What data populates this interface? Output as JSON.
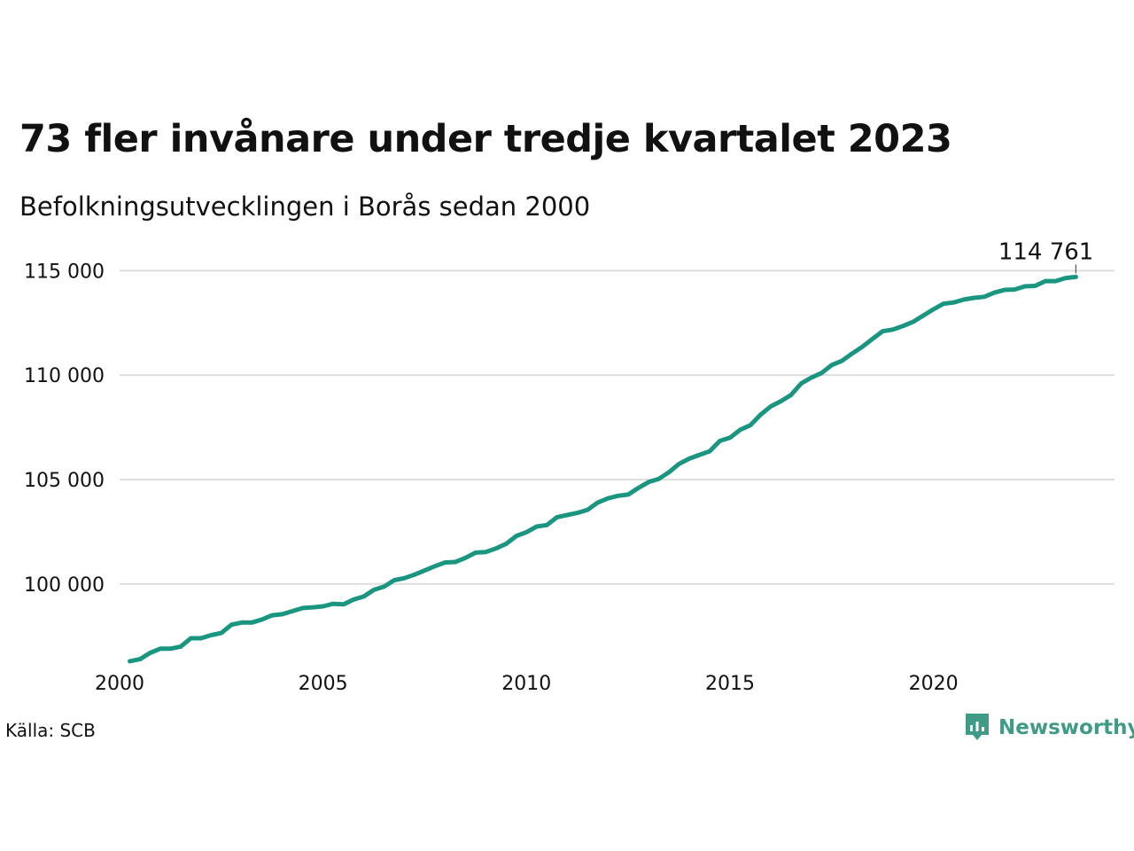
{
  "title": "73 fler invånare under tredje kvartalet 2023",
  "subtitle": "Befolkningsutvecklingen i Borås sedan 2000",
  "source": "Källa: SCB",
  "brand": {
    "name": "Newsworthy",
    "icon": "newsworthy-logo-icon",
    "color": "#3f9a86"
  },
  "chart_data": {
    "type": "line",
    "title": "73 fler invånare under tredje kvartalet 2023",
    "subtitle": "Befolkningsutvecklingen i Borås sedan 2000",
    "xlabel": "",
    "ylabel": "",
    "x_ticks": [
      "2000",
      "2005",
      "2010",
      "2015",
      "2020"
    ],
    "y_ticks": [
      "100 000",
      "105 000",
      "110 000",
      "115 000"
    ],
    "xlim": [
      2000.0,
      2024.45
    ],
    "ylim": [
      96000,
      116500
    ],
    "grid": true,
    "legend": "none",
    "line_color": "#1a9580",
    "end_label": "114 761",
    "series": [
      {
        "x": [
          2000.25,
          2000.5,
          2000.75,
          2001.0,
          2001.25,
          2001.5,
          2001.75,
          2002.0,
          2002.25,
          2002.5,
          2002.75,
          2003.0,
          2003.25,
          2003.5,
          2003.75,
          2004.0,
          2004.25,
          2004.5,
          2004.75,
          2005.0,
          2005.25,
          2005.5,
          2005.75,
          2006.0,
          2006.25,
          2006.5,
          2006.75,
          2007.0,
          2007.25,
          2007.5,
          2007.75,
          2008.0,
          2008.25,
          2008.5,
          2008.75,
          2009.0,
          2009.25,
          2009.5,
          2009.75,
          2010.0,
          2010.25,
          2010.5,
          2010.75,
          2011.0,
          2011.25,
          2011.5,
          2011.75,
          2012.0,
          2012.25,
          2012.5,
          2012.75,
          2013.0,
          2013.25,
          2013.5,
          2013.75,
          2014.0,
          2014.25,
          2014.5,
          2014.75,
          2015.0,
          2015.25,
          2015.5,
          2015.75,
          2016.0,
          2016.25,
          2016.5,
          2016.75,
          2017.0,
          2017.25,
          2017.5,
          2017.75,
          2018.0,
          2018.25,
          2018.5,
          2018.75,
          2019.0,
          2019.25,
          2019.5,
          2019.75,
          2020.0,
          2020.25,
          2020.5,
          2020.75,
          2021.0,
          2021.25,
          2021.5,
          2021.75,
          2022.0,
          2022.25,
          2022.5,
          2022.75,
          2023.0,
          2023.25,
          2023.5
        ],
        "y": [
          96300,
          96400,
          96700,
          96900,
          96900,
          97000,
          97400,
          97400,
          97550,
          97650,
          98050,
          98150,
          98150,
          98300,
          98500,
          98550,
          98700,
          98850,
          98880,
          98930,
          99050,
          99020,
          99250,
          99400,
          99720,
          99870,
          100180,
          100280,
          100450,
          100650,
          100850,
          101030,
          101050,
          101250,
          101500,
          101530,
          101700,
          101920,
          102300,
          102480,
          102750,
          102820,
          103200,
          103300,
          103400,
          103550,
          103900,
          104100,
          104220,
          104280,
          104600,
          104880,
          105030,
          105350,
          105750,
          106000,
          106180,
          106350,
          106850,
          107000,
          107380,
          107600,
          108100,
          108500,
          108750,
          109050,
          109600,
          109880,
          110100,
          110480,
          110680,
          111030,
          111350,
          111730,
          112100,
          112180,
          112350,
          112550,
          112850,
          113150,
          113420,
          113480,
          113620,
          113700,
          113750,
          113950,
          114080,
          114100,
          114250,
          114270,
          114500,
          114500,
          114650,
          114700
        ]
      }
    ]
  }
}
